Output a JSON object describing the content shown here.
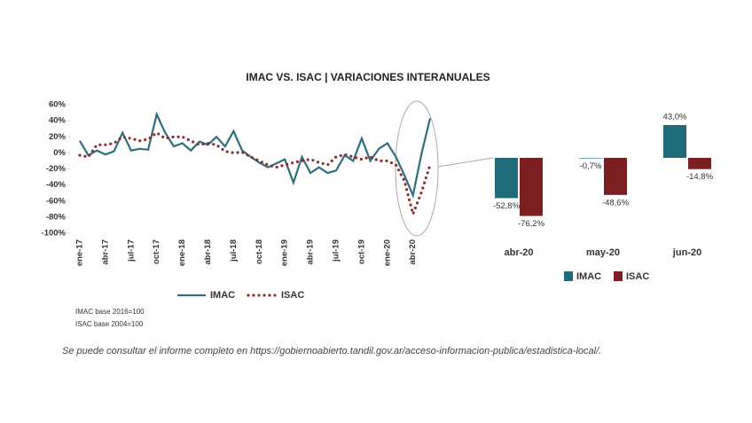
{
  "chart_data": [
    {
      "type": "line",
      "title": "IMAC VS. ISAC | VARIACIONES INTERANUALES",
      "categories": [
        "ene-17",
        null,
        null,
        "abr-17",
        null,
        null,
        "jul-17",
        null,
        null,
        "oct-17",
        null,
        null,
        "ene-18",
        null,
        null,
        "abr-18",
        null,
        null,
        "jul-18",
        null,
        null,
        "oct-18",
        null,
        null,
        "ene-19",
        null,
        null,
        "abr-19",
        null,
        null,
        "jul-19",
        null,
        null,
        "oct-19",
        null,
        null,
        "ene-20",
        null,
        null,
        "abr-20",
        null,
        null
      ],
      "series": [
        {
          "name": "IMAC",
          "color": "#2e6f7e",
          "style": "solid",
          "values": [
            15,
            -3,
            3,
            -2,
            2,
            25,
            3,
            5,
            4,
            48,
            25,
            8,
            12,
            3,
            14,
            10,
            20,
            8,
            27,
            3,
            -5,
            -12,
            -18,
            -13,
            -8,
            -37,
            -5,
            -25,
            -18,
            -25,
            -22,
            -3,
            -10,
            18,
            -10,
            5,
            12,
            -5,
            -28,
            -52.8,
            -0.7,
            43.0
          ]
        },
        {
          "name": "ISAC",
          "color": "#8b2f2f",
          "style": "dotted",
          "values": [
            -3,
            -5,
            10,
            10,
            12,
            20,
            18,
            15,
            17,
            25,
            18,
            20,
            20,
            15,
            10,
            12,
            10,
            2,
            0,
            1,
            -5,
            -10,
            -15,
            -18,
            -15,
            -12,
            -10,
            -8,
            -12,
            -15,
            -5,
            -2,
            -5,
            -8,
            -5,
            -10,
            -10,
            -15,
            -35,
            -76.2,
            -48.6,
            -14.8
          ]
        }
      ],
      "ylim": [
        -100,
        60
      ],
      "yticks": [
        {
          "value": 60,
          "label": "60%"
        },
        {
          "value": 40,
          "label": "40%"
        },
        {
          "value": 20,
          "label": "20%"
        },
        {
          "value": 0,
          "label": "0%"
        },
        {
          "value": -20,
          "label": "-20%"
        },
        {
          "value": -40,
          "label": "-40%"
        },
        {
          "value": -60,
          "label": "-60%"
        },
        {
          "value": -80,
          "label": "-80%"
        },
        {
          "value": -100,
          "label": "-100%"
        }
      ],
      "notes": [
        "IMAC base 2016=100",
        "ISAC base 2004=100"
      ]
    },
    {
      "type": "bar",
      "categories": [
        "abr-20",
        "may-20",
        "jun-20"
      ],
      "series": [
        {
          "name": "IMAC",
          "color": "#1f6b7a",
          "values": [
            -52.8,
            -0.7,
            43.0
          ],
          "value_labels": [
            "-52,8%",
            "-0,7%",
            "43,0%"
          ]
        },
        {
          "name": "ISAC",
          "color": "#7a1f22",
          "values": [
            -76.2,
            -48.6,
            -14.8
          ],
          "value_labels": [
            "-76,2%",
            "-48,6%",
            "-14,8%"
          ]
        }
      ]
    }
  ],
  "footer": "Se puede consultar el informe completo en https://gobiernoabierto.tandil.gov.ar/acceso-informacion-publica/estadistica-local/."
}
